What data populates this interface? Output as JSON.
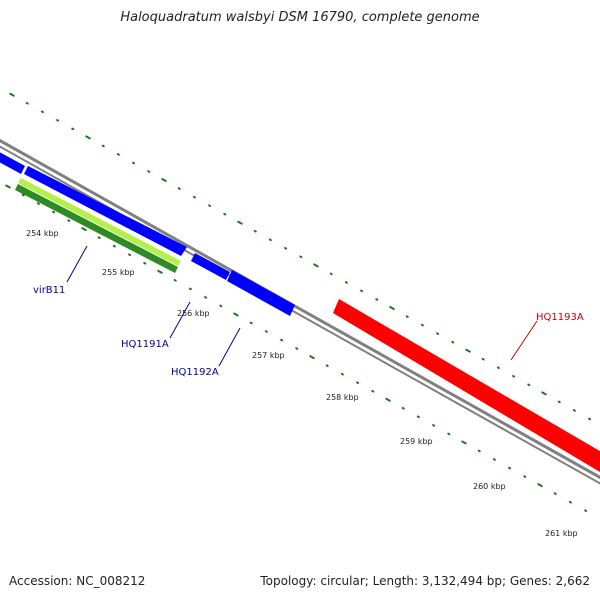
{
  "title": "Haloquadratum walsbyi DSM 16790, complete genome",
  "footer": {
    "accession": "Accession: NC_008212",
    "summary": "Topology: circular; Length: 3,132,494 bp; Genes: 2,662"
  },
  "colors": {
    "backbone": "#808080",
    "tick": "#1a7a1a",
    "gene_blue": "#0000ff",
    "gene_red": "#ff0000",
    "gene_green": "#2e8b22",
    "gene_lightgreen": "#b4f04a",
    "label_blue": "#00009c",
    "label_red": "#cc0000"
  },
  "ticks": [
    {
      "label": "254 kbp"
    },
    {
      "label": "255 kbp"
    },
    {
      "label": "256 kbp"
    },
    {
      "label": "257 kbp"
    },
    {
      "label": "258 kbp"
    },
    {
      "label": "259 kbp"
    },
    {
      "label": "260 kbp"
    },
    {
      "label": "261 kbp"
    }
  ],
  "genes": [
    {
      "name": "virB11",
      "color": "gene_lightgreen"
    },
    {
      "name": "HQ1191A",
      "color": "gene_blue"
    },
    {
      "name": "HQ1192A",
      "color": "gene_blue"
    },
    {
      "name": "HQ1193A",
      "color": "gene_red"
    }
  ]
}
